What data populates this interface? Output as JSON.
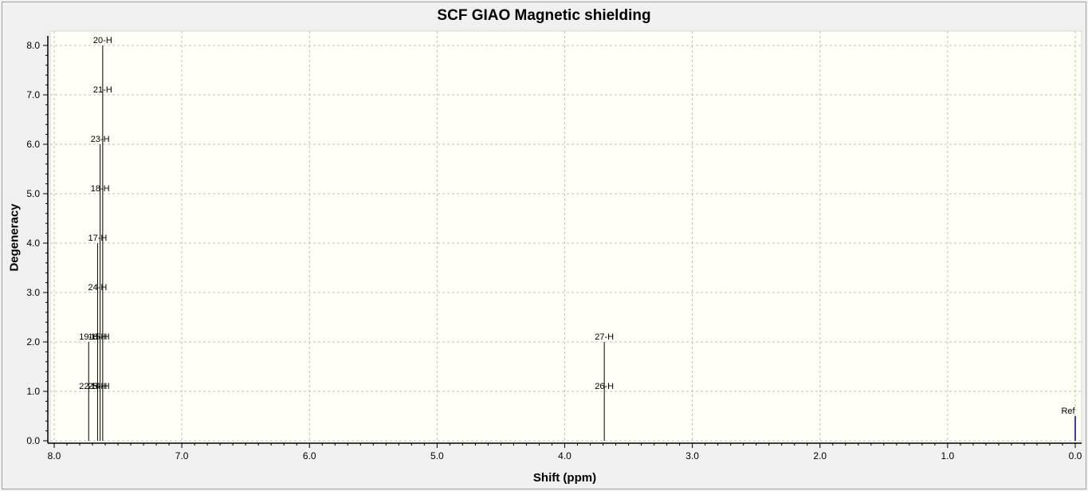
{
  "chart_data": {
    "type": "bar",
    "title": "SCF GIAO Magnetic shielding",
    "xlabel": "Shift (ppm)",
    "ylabel": "Degeneracy",
    "xlim": [
      8.0,
      0.0
    ],
    "ylim": [
      0.0,
      8.0
    ],
    "x_reversed": true,
    "grid": true,
    "xticks": [
      "8.0",
      "7.0",
      "6.0",
      "5.0",
      "4.0",
      "3.0",
      "2.0",
      "1.0",
      "0.0"
    ],
    "yticks": [
      "0.0",
      "1.0",
      "2.0",
      "3.0",
      "4.0",
      "5.0",
      "6.0",
      "7.0",
      "8.0"
    ],
    "peaks": [
      {
        "x": 7.73,
        "height": 2
      },
      {
        "x": 7.66,
        "height": 4
      },
      {
        "x": 7.64,
        "height": 6
      },
      {
        "x": 7.62,
        "height": 8
      },
      {
        "x": 3.69,
        "height": 2
      }
    ],
    "labels": [
      {
        "text": "20-H",
        "x": 7.62,
        "y": 8
      },
      {
        "text": "21-H",
        "x": 7.62,
        "y": 7
      },
      {
        "text": "23-H",
        "x": 7.64,
        "y": 6
      },
      {
        "text": "18-H",
        "x": 7.64,
        "y": 5
      },
      {
        "text": "17-H",
        "x": 7.66,
        "y": 4
      },
      {
        "text": "24-H",
        "x": 7.66,
        "y": 3
      },
      {
        "text": "19-H",
        "x": 7.73,
        "y": 2
      },
      {
        "text": "16-H",
        "x": 7.66,
        "y": 2
      },
      {
        "text": "15-H",
        "x": 7.64,
        "y": 2
      },
      {
        "text": "22-H",
        "x": 7.73,
        "y": 1
      },
      {
        "text": "25-H",
        "x": 7.66,
        "y": 1
      },
      {
        "text": "14-H",
        "x": 7.64,
        "y": 1
      },
      {
        "text": "27-H",
        "x": 3.69,
        "y": 2
      },
      {
        "text": "26-H",
        "x": 3.69,
        "y": 1
      }
    ],
    "reference": {
      "text": "Ref",
      "x": 0.0,
      "height": 0.5,
      "color": "#00008b"
    }
  },
  "colors": {
    "plot_background": "#fffff5",
    "grid": "#c0c0c0",
    "peak": "#000000"
  }
}
